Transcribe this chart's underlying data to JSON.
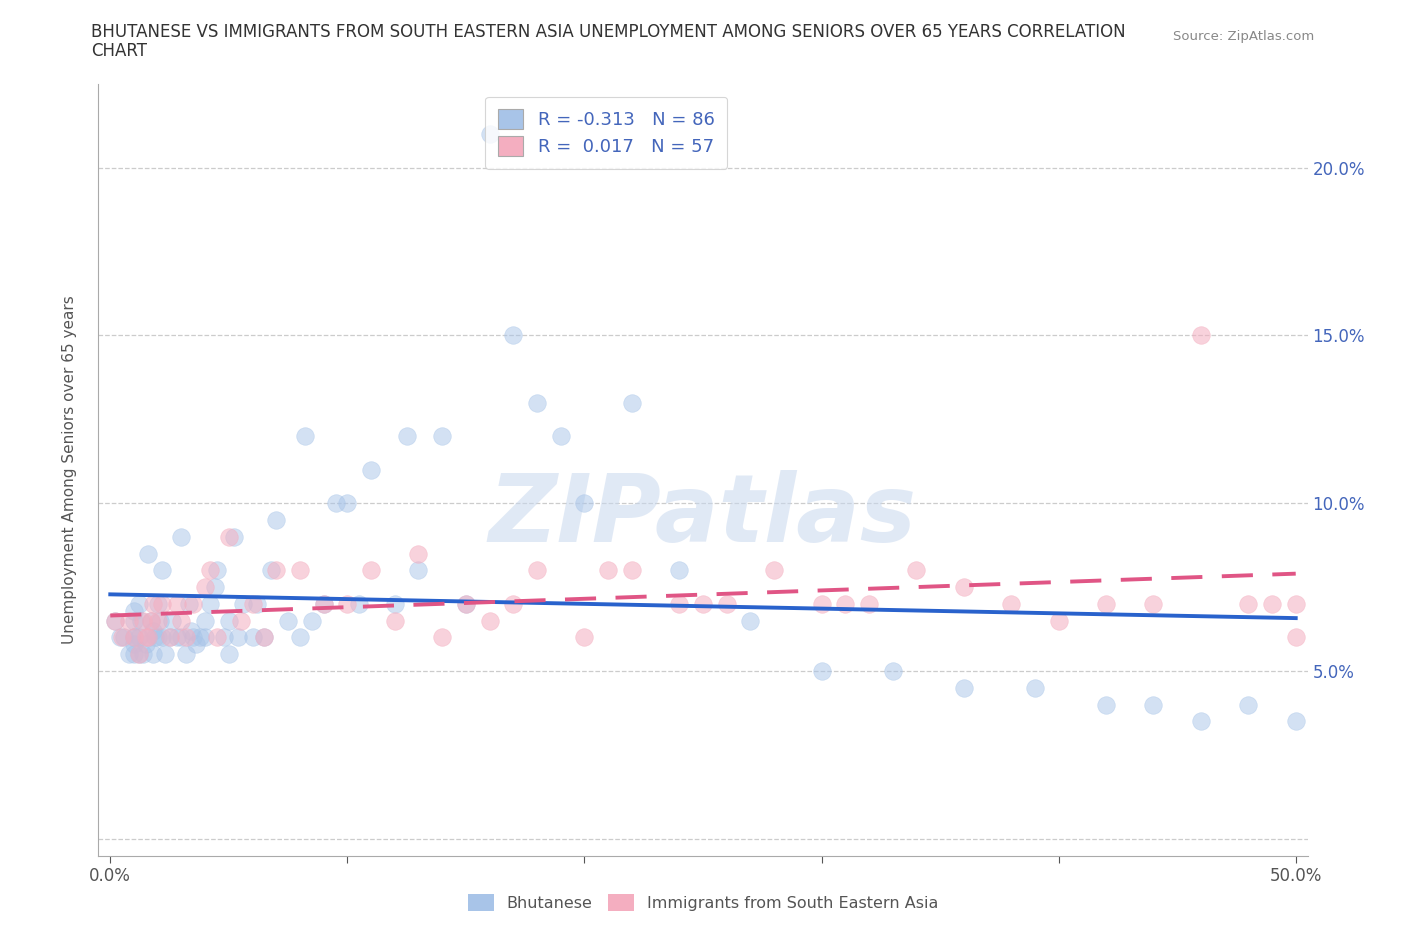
{
  "title_line1": "BHUTANESE VS IMMIGRANTS FROM SOUTH EASTERN ASIA UNEMPLOYMENT AMONG SENIORS OVER 65 YEARS CORRELATION",
  "title_line2": "CHART",
  "source_text": "Source: ZipAtlas.com",
  "ylabel": "Unemployment Among Seniors over 65 years",
  "xlim": [
    -0.005,
    0.505
  ],
  "ylim": [
    -0.005,
    0.225
  ],
  "xticks": [
    0.0,
    0.1,
    0.2,
    0.3,
    0.4,
    0.5
  ],
  "xticklabels": [
    "0.0%",
    "",
    "",
    "",
    "",
    "50.0%"
  ],
  "yticks": [
    0.0,
    0.05,
    0.1,
    0.15,
    0.2
  ],
  "yticklabels_right": [
    "",
    "5.0%",
    "10.0%",
    "15.0%",
    "20.0%"
  ],
  "blue_color": "#a8c4e8",
  "pink_color": "#f4aec0",
  "line_blue": "#2962cc",
  "line_pink": "#e05585",
  "legend_R_blue": "-0.313",
  "legend_N_blue": "86",
  "legend_R_pink": "0.017",
  "legend_N_pink": "57",
  "bhutanese_x": [
    0.002,
    0.004,
    0.006,
    0.008,
    0.01,
    0.01,
    0.01,
    0.01,
    0.01,
    0.01,
    0.012,
    0.012,
    0.012,
    0.013,
    0.014,
    0.015,
    0.016,
    0.016,
    0.017,
    0.018,
    0.018,
    0.019,
    0.02,
    0.02,
    0.021,
    0.022,
    0.022,
    0.023,
    0.025,
    0.026,
    0.028,
    0.03,
    0.03,
    0.032,
    0.033,
    0.034,
    0.035,
    0.036,
    0.038,
    0.04,
    0.04,
    0.042,
    0.044,
    0.045,
    0.048,
    0.05,
    0.05,
    0.052,
    0.054,
    0.056,
    0.06,
    0.062,
    0.065,
    0.068,
    0.07,
    0.075,
    0.08,
    0.082,
    0.085,
    0.09,
    0.095,
    0.1,
    0.105,
    0.11,
    0.12,
    0.125,
    0.13,
    0.14,
    0.15,
    0.16,
    0.17,
    0.18,
    0.19,
    0.2,
    0.22,
    0.24,
    0.27,
    0.3,
    0.33,
    0.36,
    0.39,
    0.42,
    0.44,
    0.46,
    0.48,
    0.5
  ],
  "bhutanese_y": [
    0.065,
    0.06,
    0.06,
    0.055,
    0.055,
    0.06,
    0.065,
    0.068,
    0.06,
    0.058,
    0.055,
    0.06,
    0.07,
    0.065,
    0.055,
    0.058,
    0.06,
    0.085,
    0.065,
    0.055,
    0.062,
    0.06,
    0.07,
    0.06,
    0.065,
    0.06,
    0.08,
    0.055,
    0.06,
    0.065,
    0.06,
    0.09,
    0.06,
    0.055,
    0.07,
    0.062,
    0.06,
    0.058,
    0.06,
    0.06,
    0.065,
    0.07,
    0.075,
    0.08,
    0.06,
    0.065,
    0.055,
    0.09,
    0.06,
    0.07,
    0.06,
    0.07,
    0.06,
    0.08,
    0.095,
    0.065,
    0.06,
    0.12,
    0.065,
    0.07,
    0.1,
    0.1,
    0.07,
    0.11,
    0.07,
    0.12,
    0.08,
    0.12,
    0.07,
    0.21,
    0.15,
    0.13,
    0.12,
    0.1,
    0.13,
    0.08,
    0.065,
    0.05,
    0.05,
    0.045,
    0.045,
    0.04,
    0.04,
    0.035,
    0.04,
    0.035
  ],
  "sea_x": [
    0.002,
    0.005,
    0.008,
    0.01,
    0.012,
    0.014,
    0.015,
    0.016,
    0.017,
    0.018,
    0.02,
    0.022,
    0.025,
    0.028,
    0.03,
    0.032,
    0.035,
    0.04,
    0.042,
    0.045,
    0.05,
    0.055,
    0.06,
    0.065,
    0.07,
    0.08,
    0.09,
    0.1,
    0.11,
    0.12,
    0.13,
    0.14,
    0.15,
    0.16,
    0.17,
    0.18,
    0.2,
    0.21,
    0.22,
    0.24,
    0.25,
    0.26,
    0.28,
    0.3,
    0.31,
    0.32,
    0.34,
    0.36,
    0.38,
    0.4,
    0.42,
    0.44,
    0.46,
    0.48,
    0.49,
    0.5,
    0.5
  ],
  "sea_y": [
    0.065,
    0.06,
    0.065,
    0.06,
    0.055,
    0.065,
    0.06,
    0.06,
    0.065,
    0.07,
    0.065,
    0.07,
    0.06,
    0.07,
    0.065,
    0.06,
    0.07,
    0.075,
    0.08,
    0.06,
    0.09,
    0.065,
    0.07,
    0.06,
    0.08,
    0.08,
    0.07,
    0.07,
    0.08,
    0.065,
    0.085,
    0.06,
    0.07,
    0.065,
    0.07,
    0.08,
    0.06,
    0.08,
    0.08,
    0.07,
    0.07,
    0.07,
    0.08,
    0.07,
    0.07,
    0.07,
    0.08,
    0.075,
    0.07,
    0.065,
    0.07,
    0.07,
    0.15,
    0.07,
    0.07,
    0.07,
    0.06
  ],
  "watermark_text": "ZIPatlas",
  "background_color": "#ffffff",
  "grid_color": "#cccccc",
  "tick_color": "#4466bb"
}
